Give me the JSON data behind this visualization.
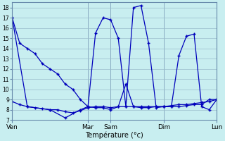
{
  "xlabel": "Température (°c)",
  "ylim": [
    7,
    18.5
  ],
  "yticks": [
    7,
    8,
    9,
    10,
    11,
    12,
    13,
    14,
    15,
    16,
    17,
    18
  ],
  "background_color": "#c8eef0",
  "grid_color": "#99bbcc",
  "line_color": "#0000bb",
  "xtick_labels": [
    "Ven",
    "Mar",
    "Sam",
    "Dim",
    "Lun"
  ],
  "xtick_positions": [
    0,
    10,
    13,
    20,
    27
  ],
  "xlim": [
    0,
    27
  ],
  "series1_x": [
    0,
    1,
    2,
    3,
    4,
    5,
    6,
    7,
    8,
    9,
    10,
    11,
    12,
    13,
    14,
    15,
    16,
    17,
    18,
    19,
    20,
    21,
    22,
    23,
    24,
    25,
    26,
    27
  ],
  "series1_y": [
    17.0,
    14.5,
    14.0,
    13.5,
    12.5,
    12.0,
    11.5,
    10.5,
    10.0,
    9.0,
    8.3,
    8.2,
    8.2,
    8.0,
    8.3,
    10.5,
    8.3,
    8.2,
    8.2,
    8.3,
    8.3,
    8.3,
    8.3,
    8.4,
    8.5,
    8.5,
    9.0,
    9.0
  ],
  "series2_x": [
    0,
    2,
    5,
    7,
    9,
    10,
    11,
    12,
    13,
    14,
    15,
    16,
    17,
    18,
    19,
    20,
    21,
    22,
    23,
    24,
    25,
    26,
    27
  ],
  "series2_y": [
    17.0,
    8.3,
    8.0,
    7.2,
    8.0,
    8.3,
    15.5,
    17.0,
    16.8,
    15.0,
    8.3,
    18.0,
    18.2,
    14.5,
    8.2,
    8.3,
    8.3,
    13.3,
    15.2,
    15.4,
    8.3,
    8.0,
    9.0
  ],
  "series3_x": [
    0,
    1,
    2,
    3,
    4,
    5,
    6,
    7,
    8,
    9,
    10,
    11,
    12,
    13,
    14,
    15,
    16,
    17,
    18,
    19,
    20,
    21,
    22,
    23,
    24,
    25,
    26,
    27
  ],
  "series3_y": [
    8.8,
    8.5,
    8.3,
    8.2,
    8.1,
    8.0,
    8.0,
    7.8,
    7.7,
    7.9,
    8.2,
    8.3,
    8.3,
    8.2,
    8.3,
    8.3,
    8.3,
    8.3,
    8.3,
    8.3,
    8.3,
    8.4,
    8.5,
    8.5,
    8.6,
    8.7,
    8.8,
    9.0
  ]
}
